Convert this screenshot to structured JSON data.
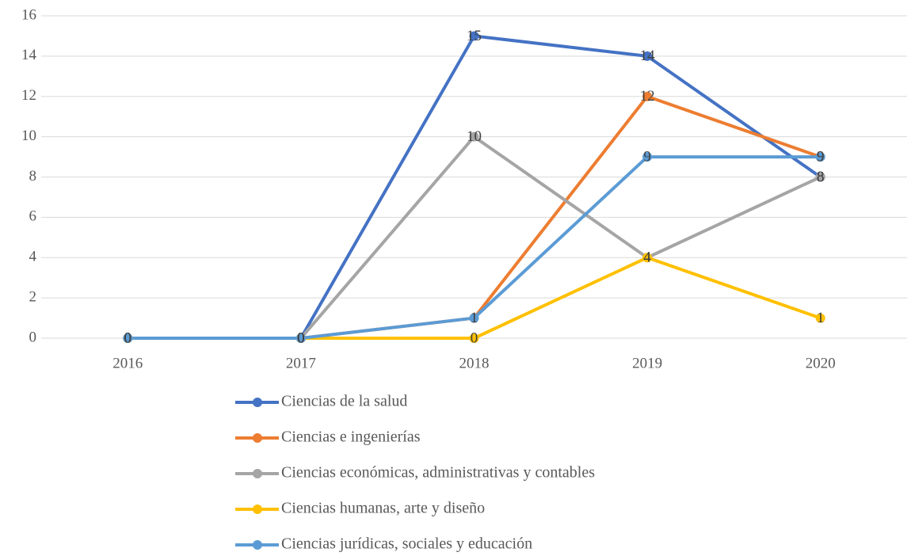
{
  "chart_data": {
    "type": "line",
    "categories": [
      "2016",
      "2017",
      "2018",
      "2019",
      "2020"
    ],
    "series": [
      {
        "name": "Ciencias de la salud",
        "color": "#4472c4",
        "values": [
          0,
          0,
          15,
          14,
          8
        ]
      },
      {
        "name": "Ciencias e ingenierías",
        "color": "#ed7d31",
        "values": [
          0,
          0,
          1,
          12,
          9
        ]
      },
      {
        "name": "Ciencias económicas, administrativas y contables",
        "color": "#a5a5a5",
        "values": [
          0,
          0,
          10,
          4,
          8
        ]
      },
      {
        "name": "Ciencias humanas, arte y diseño",
        "color": "#ffc000",
        "values": [
          0,
          0,
          0,
          4,
          1
        ]
      },
      {
        "name": "Ciencias jurídicas, sociales y educación",
        "color": "#5b9bd5",
        "values": [
          0,
          0,
          1,
          9,
          9
        ]
      }
    ],
    "ylim": [
      0,
      16
    ],
    "yticks": [
      0,
      2,
      4,
      6,
      8,
      10,
      12,
      14,
      16
    ],
    "grid": true,
    "legend": "bottom"
  }
}
